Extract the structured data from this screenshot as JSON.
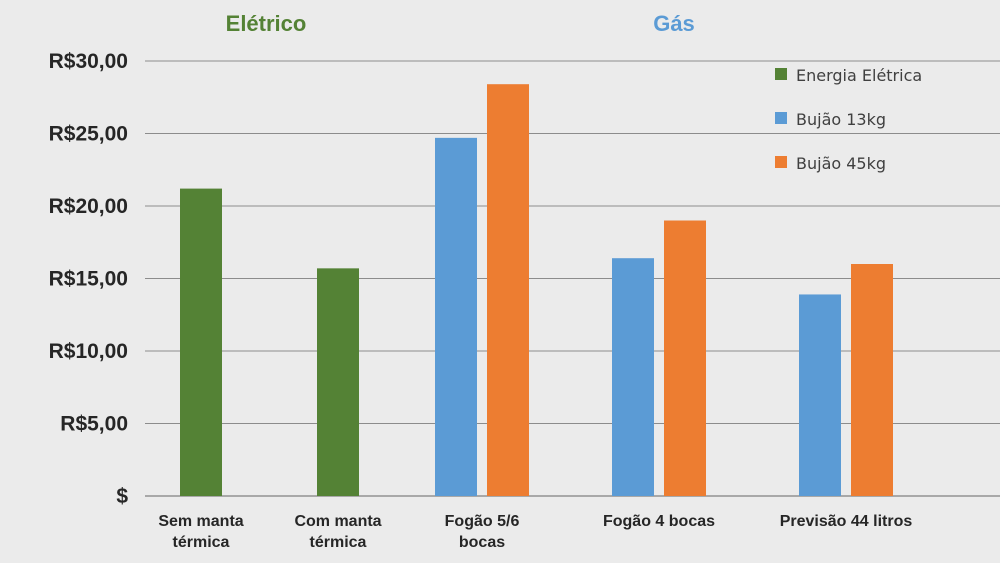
{
  "chart_data": {
    "type": "bar",
    "group_titles": [
      {
        "text": "Elétrico",
        "color": "#548235"
      },
      {
        "text": "Gás",
        "color": "#5b9bd5"
      }
    ],
    "categories": [
      [
        "Sem manta",
        "térmica"
      ],
      [
        "Com manta",
        "térmica"
      ],
      [
        "Fogão 5/6",
        "bocas"
      ],
      [
        "Fogão 4 bocas"
      ],
      [
        "Previsão 44 litros"
      ]
    ],
    "series": [
      {
        "name": "Energia Elétrica",
        "color": "#548235",
        "values": [
          21.2,
          15.7,
          null,
          null,
          null
        ]
      },
      {
        "name": "Bujão 13kg",
        "color": "#5b9bd5",
        "values": [
          null,
          null,
          24.7,
          16.4,
          13.9
        ]
      },
      {
        "name": "Bujão 45kg",
        "color": "#ed7d31",
        "values": [
          null,
          null,
          28.4,
          19.0,
          16.0
        ]
      }
    ],
    "y_ticks": [
      {
        "value": 0,
        "label": "$"
      },
      {
        "value": 5,
        "label": "R$5,00"
      },
      {
        "value": 10,
        "label": "R$10,00"
      },
      {
        "value": 15,
        "label": "R$15,00"
      },
      {
        "value": 20,
        "label": "R$20,00"
      },
      {
        "value": 25,
        "label": "R$25,00"
      },
      {
        "value": 30,
        "label": "R$30,00"
      }
    ],
    "ylim": [
      0,
      30
    ],
    "grid": true,
    "legend_position": "top-right"
  }
}
